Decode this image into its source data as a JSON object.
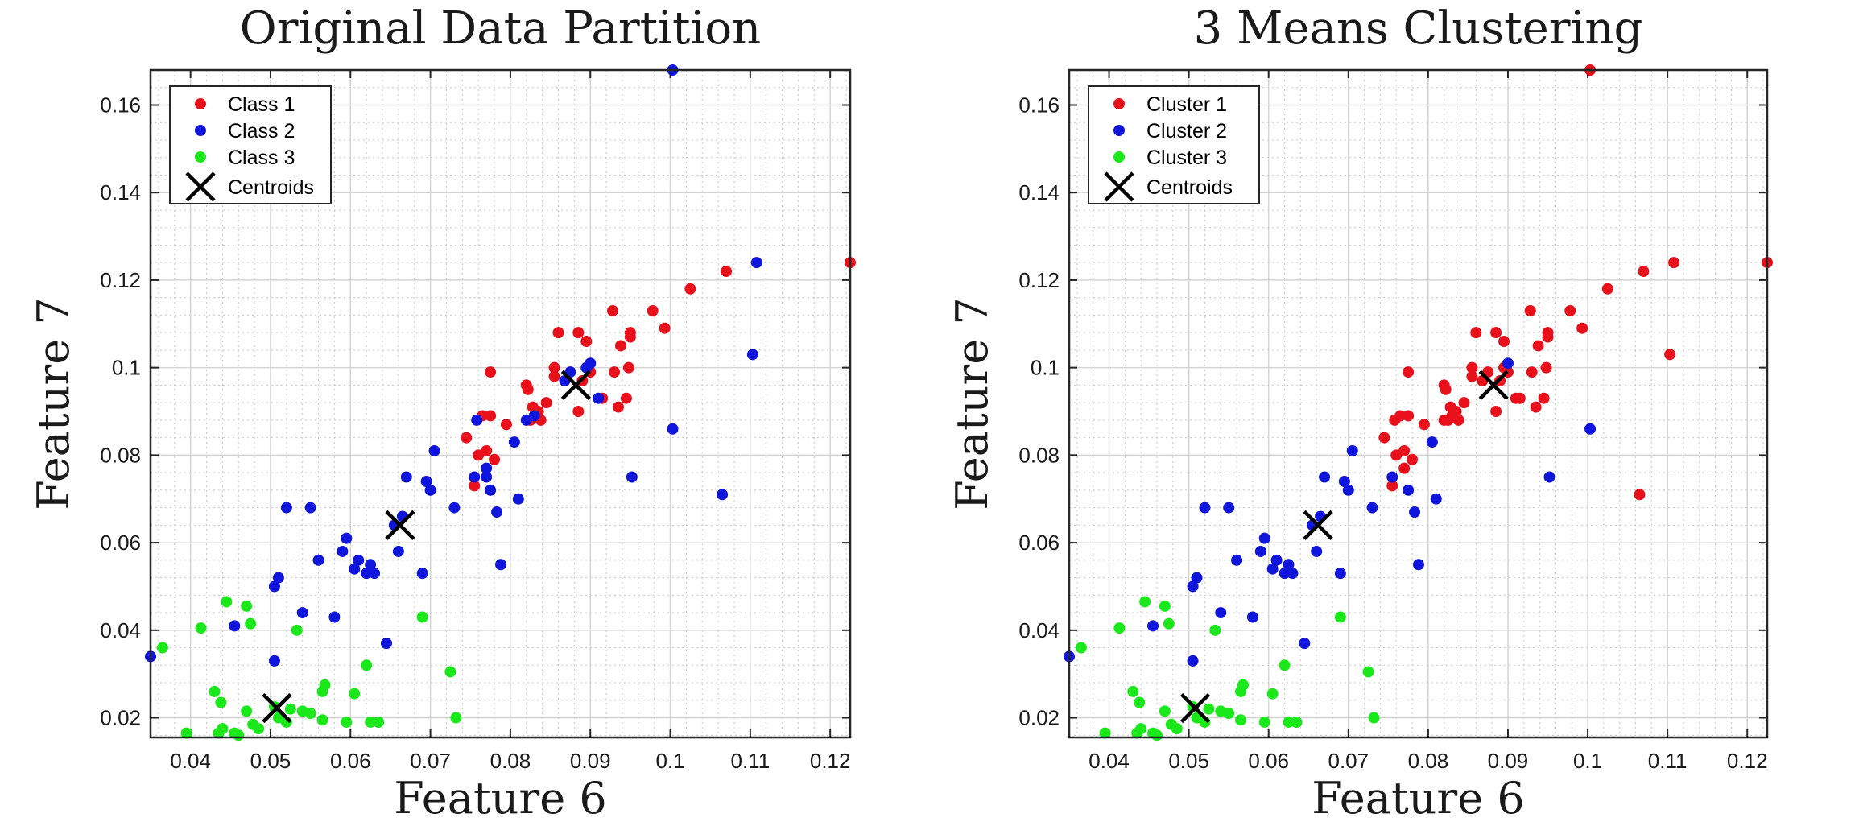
{
  "chart_data": [
    {
      "type": "scatter",
      "title": "Original Data Partition",
      "xlabel": "Feature 6",
      "ylabel": "Feature 7",
      "xlim": [
        0.035,
        0.1225
      ],
      "ylim": [
        0.0155,
        0.168
      ],
      "xticks": [
        0.04,
        0.05,
        0.06,
        0.07,
        0.08,
        0.09,
        0.1,
        0.11,
        0.12
      ],
      "yticks": [
        0.02,
        0.04,
        0.06,
        0.08,
        0.1,
        0.12,
        0.14,
        0.16
      ],
      "grid": true,
      "minor_grid": true,
      "legend_position": "top-left",
      "series": [
        {
          "name": "Class 1",
          "color": "#e8101b",
          "points": [
            [
              0.0745,
              0.084
            ],
            [
              0.0755,
              0.073
            ],
            [
              0.076,
              0.08
            ],
            [
              0.0765,
              0.089
            ],
            [
              0.077,
              0.081
            ],
            [
              0.0775,
              0.089
            ],
            [
              0.0775,
              0.099
            ],
            [
              0.078,
              0.079
            ],
            [
              0.0795,
              0.087
            ],
            [
              0.082,
              0.096
            ],
            [
              0.0822,
              0.095
            ],
            [
              0.0825,
              0.088
            ],
            [
              0.0828,
              0.091
            ],
            [
              0.0835,
              0.09
            ],
            [
              0.0838,
              0.088
            ],
            [
              0.0845,
              0.092
            ],
            [
              0.0855,
              0.1
            ],
            [
              0.0855,
              0.098
            ],
            [
              0.086,
              0.108
            ],
            [
              0.0885,
              0.108
            ],
            [
              0.0885,
              0.09
            ],
            [
              0.089,
              0.097
            ],
            [
              0.0895,
              0.106
            ],
            [
              0.09,
              0.099
            ],
            [
              0.0915,
              0.093
            ],
            [
              0.0928,
              0.113
            ],
            [
              0.093,
              0.099
            ],
            [
              0.0935,
              0.091
            ],
            [
              0.0938,
              0.105
            ],
            [
              0.0945,
              0.093
            ],
            [
              0.0948,
              0.1
            ],
            [
              0.095,
              0.107
            ],
            [
              0.095,
              0.108
            ],
            [
              0.0978,
              0.113
            ],
            [
              0.0993,
              0.109
            ],
            [
              0.1025,
              0.118
            ],
            [
              0.107,
              0.122
            ],
            [
              0.1225,
              0.124
            ]
          ]
        },
        {
          "name": "Class 2",
          "color": "#1015dc",
          "points": [
            [
              0.035,
              0.034
            ],
            [
              0.0455,
              0.041
            ],
            [
              0.0505,
              0.05
            ],
            [
              0.0505,
              0.033
            ],
            [
              0.051,
              0.052
            ],
            [
              0.052,
              0.068
            ],
            [
              0.054,
              0.044
            ],
            [
              0.055,
              0.068
            ],
            [
              0.056,
              0.056
            ],
            [
              0.058,
              0.043
            ],
            [
              0.059,
              0.058
            ],
            [
              0.0595,
              0.061
            ],
            [
              0.0605,
              0.054
            ],
            [
              0.061,
              0.056
            ],
            [
              0.062,
              0.053
            ],
            [
              0.0625,
              0.055
            ],
            [
              0.063,
              0.053
            ],
            [
              0.0635,
              0.019
            ],
            [
              0.0645,
              0.037
            ],
            [
              0.0655,
              0.064
            ],
            [
              0.066,
              0.058
            ],
            [
              0.0665,
              0.066
            ],
            [
              0.067,
              0.075
            ],
            [
              0.069,
              0.053
            ],
            [
              0.0695,
              0.074
            ],
            [
              0.07,
              0.072
            ],
            [
              0.0705,
              0.081
            ],
            [
              0.073,
              0.068
            ],
            [
              0.0755,
              0.075
            ],
            [
              0.0758,
              0.088
            ],
            [
              0.077,
              0.077
            ],
            [
              0.077,
              0.075
            ],
            [
              0.0775,
              0.072
            ],
            [
              0.0783,
              0.067
            ],
            [
              0.0788,
              0.055
            ],
            [
              0.0805,
              0.083
            ],
            [
              0.081,
              0.07
            ],
            [
              0.082,
              0.088
            ],
            [
              0.083,
              0.089
            ],
            [
              0.0868,
              0.097
            ],
            [
              0.0875,
              0.099
            ],
            [
              0.0895,
              0.1
            ],
            [
              0.09,
              0.101
            ],
            [
              0.091,
              0.093
            ],
            [
              0.0952,
              0.075
            ],
            [
              0.1003,
              0.086
            ],
            [
              0.1003,
              0.168
            ],
            [
              0.1065,
              0.071
            ],
            [
              0.1103,
              0.103
            ],
            [
              0.1108,
              0.124
            ]
          ]
        },
        {
          "name": "Class 3",
          "color": "#1ae81a",
          "points": [
            [
              0.0365,
              0.036
            ],
            [
              0.0395,
              0.0165
            ],
            [
              0.0413,
              0.0405
            ],
            [
              0.043,
              0.026
            ],
            [
              0.0435,
              0.0165
            ],
            [
              0.0438,
              0.0235
            ],
            [
              0.044,
              0.0175
            ],
            [
              0.0445,
              0.0465
            ],
            [
              0.0455,
              0.0165
            ],
            [
              0.046,
              0.016
            ],
            [
              0.047,
              0.0455
            ],
            [
              0.047,
              0.0215
            ],
            [
              0.0475,
              0.0415
            ],
            [
              0.0478,
              0.0185
            ],
            [
              0.0485,
              0.0175
            ],
            [
              0.0505,
              0.0225
            ],
            [
              0.051,
              0.02
            ],
            [
              0.052,
              0.019
            ],
            [
              0.0525,
              0.022
            ],
            [
              0.0533,
              0.04
            ],
            [
              0.054,
              0.0215
            ],
            [
              0.055,
              0.021
            ],
            [
              0.0565,
              0.0195
            ],
            [
              0.0565,
              0.026
            ],
            [
              0.0568,
              0.0275
            ],
            [
              0.0595,
              0.019
            ],
            [
              0.0605,
              0.0255
            ],
            [
              0.062,
              0.032
            ],
            [
              0.0625,
              0.019
            ],
            [
              0.0635,
              0.019
            ],
            [
              0.069,
              0.043
            ],
            [
              0.0725,
              0.0305
            ],
            [
              0.0732,
              0.02
            ]
          ]
        },
        {
          "name": "Centroids",
          "color": "#000000",
          "marker": "x",
          "points": [
            [
              0.0508,
              0.0222
            ],
            [
              0.0662,
              0.064
            ],
            [
              0.0882,
              0.096
            ]
          ]
        }
      ]
    },
    {
      "type": "scatter",
      "title": "3 Means Clustering",
      "xlabel": "Feature 6",
      "ylabel": "Feature 7",
      "xlim": [
        0.035,
        0.1225
      ],
      "ylim": [
        0.0155,
        0.168
      ],
      "xticks": [
        0.04,
        0.05,
        0.06,
        0.07,
        0.08,
        0.09,
        0.1,
        0.11,
        0.12
      ],
      "yticks": [
        0.02,
        0.04,
        0.06,
        0.08,
        0.1,
        0.12,
        0.14,
        0.16
      ],
      "grid": true,
      "minor_grid": true,
      "legend_position": "top-left",
      "series": [
        {
          "name": "Cluster 1",
          "color": "#e8101b",
          "points": [
            [
              0.0745,
              0.084
            ],
            [
              0.0755,
              0.073
            ],
            [
              0.076,
              0.08
            ],
            [
              0.0765,
              0.089
            ],
            [
              0.077,
              0.081
            ],
            [
              0.0775,
              0.089
            ],
            [
              0.0775,
              0.099
            ],
            [
              0.078,
              0.079
            ],
            [
              0.0795,
              0.087
            ],
            [
              0.082,
              0.096
            ],
            [
              0.0822,
              0.095
            ],
            [
              0.0825,
              0.088
            ],
            [
              0.0828,
              0.091
            ],
            [
              0.0835,
              0.09
            ],
            [
              0.0838,
              0.088
            ],
            [
              0.0845,
              0.092
            ],
            [
              0.0855,
              0.1
            ],
            [
              0.0855,
              0.098
            ],
            [
              0.086,
              0.108
            ],
            [
              0.0885,
              0.108
            ],
            [
              0.0885,
              0.09
            ],
            [
              0.089,
              0.097
            ],
            [
              0.0895,
              0.106
            ],
            [
              0.09,
              0.099
            ],
            [
              0.0915,
              0.093
            ],
            [
              0.0928,
              0.113
            ],
            [
              0.093,
              0.099
            ],
            [
              0.0935,
              0.091
            ],
            [
              0.0938,
              0.105
            ],
            [
              0.0945,
              0.093
            ],
            [
              0.0948,
              0.1
            ],
            [
              0.095,
              0.107
            ],
            [
              0.095,
              0.108
            ],
            [
              0.0978,
              0.113
            ],
            [
              0.0993,
              0.109
            ],
            [
              0.1025,
              0.118
            ],
            [
              0.107,
              0.122
            ],
            [
              0.1225,
              0.124
            ],
            [
              0.0758,
              0.088
            ],
            [
              0.077,
              0.077
            ],
            [
              0.082,
              0.088
            ],
            [
              0.083,
              0.089
            ],
            [
              0.0868,
              0.097
            ],
            [
              0.0875,
              0.099
            ],
            [
              0.0895,
              0.1
            ],
            [
              0.091,
              0.093
            ],
            [
              0.1003,
              0.168
            ],
            [
              0.1065,
              0.071
            ],
            [
              0.1103,
              0.103
            ],
            [
              0.1108,
              0.124
            ]
          ]
        },
        {
          "name": "Cluster 2",
          "color": "#1015dc",
          "points": [
            [
              0.035,
              0.034
            ],
            [
              0.0455,
              0.041
            ],
            [
              0.0505,
              0.05
            ],
            [
              0.0505,
              0.033
            ],
            [
              0.051,
              0.052
            ],
            [
              0.052,
              0.068
            ],
            [
              0.054,
              0.044
            ],
            [
              0.055,
              0.068
            ],
            [
              0.056,
              0.056
            ],
            [
              0.058,
              0.043
            ],
            [
              0.059,
              0.058
            ],
            [
              0.0595,
              0.061
            ],
            [
              0.0605,
              0.054
            ],
            [
              0.061,
              0.056
            ],
            [
              0.062,
              0.053
            ],
            [
              0.0625,
              0.055
            ],
            [
              0.063,
              0.053
            ],
            [
              0.0635,
              0.019
            ],
            [
              0.0645,
              0.037
            ],
            [
              0.0655,
              0.064
            ],
            [
              0.066,
              0.058
            ],
            [
              0.0665,
              0.066
            ],
            [
              0.067,
              0.075
            ],
            [
              0.069,
              0.053
            ],
            [
              0.0695,
              0.074
            ],
            [
              0.07,
              0.072
            ],
            [
              0.0705,
              0.081
            ],
            [
              0.073,
              0.068
            ],
            [
              0.0755,
              0.075
            ],
            [
              0.0775,
              0.072
            ],
            [
              0.0783,
              0.067
            ],
            [
              0.0788,
              0.055
            ],
            [
              0.0805,
              0.083
            ],
            [
              0.081,
              0.07
            ],
            [
              0.09,
              0.101
            ],
            [
              0.0952,
              0.075
            ],
            [
              0.1003,
              0.086
            ]
          ]
        },
        {
          "name": "Cluster 3",
          "color": "#1ae81a",
          "points": [
            [
              0.0365,
              0.036
            ],
            [
              0.0395,
              0.0165
            ],
            [
              0.0413,
              0.0405
            ],
            [
              0.043,
              0.026
            ],
            [
              0.0435,
              0.0165
            ],
            [
              0.0438,
              0.0235
            ],
            [
              0.044,
              0.0175
            ],
            [
              0.0445,
              0.0465
            ],
            [
              0.0455,
              0.0165
            ],
            [
              0.046,
              0.016
            ],
            [
              0.047,
              0.0455
            ],
            [
              0.047,
              0.0215
            ],
            [
              0.0475,
              0.0415
            ],
            [
              0.0478,
              0.0185
            ],
            [
              0.0485,
              0.0175
            ],
            [
              0.0505,
              0.0225
            ],
            [
              0.051,
              0.02
            ],
            [
              0.052,
              0.019
            ],
            [
              0.0525,
              0.022
            ],
            [
              0.0533,
              0.04
            ],
            [
              0.054,
              0.0215
            ],
            [
              0.055,
              0.021
            ],
            [
              0.0565,
              0.0195
            ],
            [
              0.0565,
              0.026
            ],
            [
              0.0568,
              0.0275
            ],
            [
              0.0595,
              0.019
            ],
            [
              0.0605,
              0.0255
            ],
            [
              0.062,
              0.032
            ],
            [
              0.0625,
              0.019
            ],
            [
              0.0635,
              0.019
            ],
            [
              0.069,
              0.043
            ],
            [
              0.0725,
              0.0305
            ],
            [
              0.0732,
              0.02
            ]
          ]
        },
        {
          "name": "Centroids",
          "color": "#000000",
          "marker": "x",
          "points": [
            [
              0.0508,
              0.0222
            ],
            [
              0.0662,
              0.064
            ],
            [
              0.0882,
              0.096
            ]
          ]
        }
      ]
    }
  ]
}
